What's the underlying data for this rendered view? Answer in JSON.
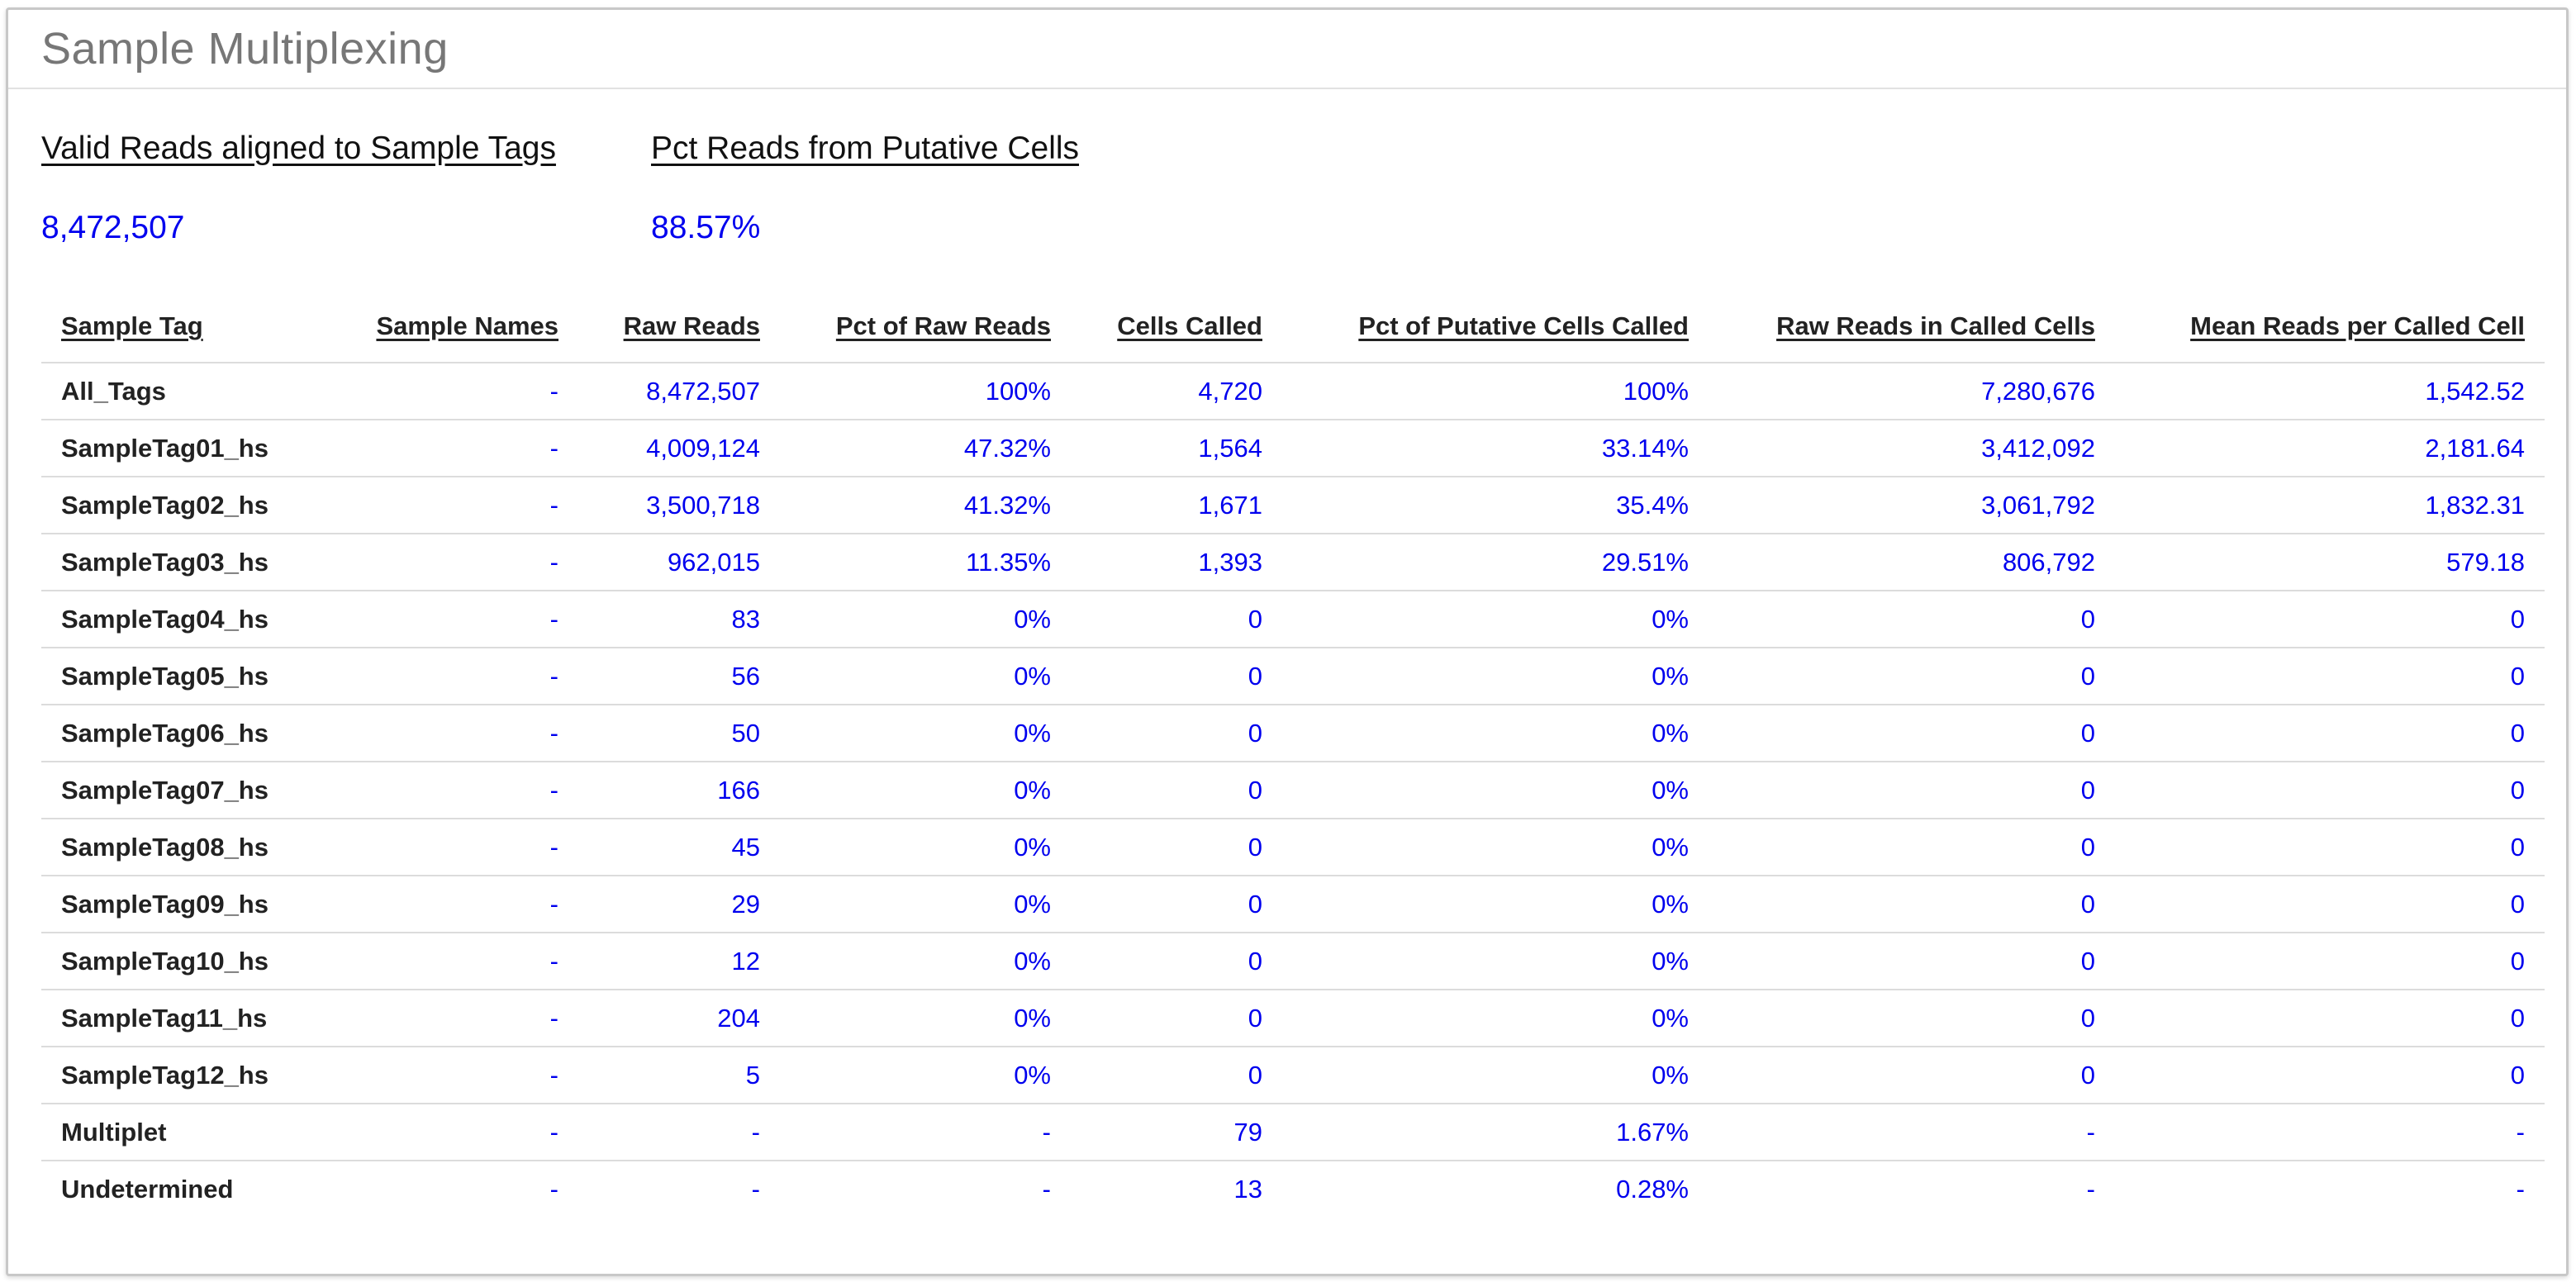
{
  "panel": {
    "title": "Sample Multiplexing"
  },
  "summary": {
    "valid_reads_label": "Valid Reads aligned to Sample Tags",
    "valid_reads_value": "8,472,507",
    "pct_putative_label": "Pct Reads from Putative Cells",
    "pct_putative_value": "88.57%"
  },
  "table": {
    "columns": [
      "Sample Tag",
      "Sample Names",
      "Raw Reads",
      "Pct of Raw Reads",
      "Cells Called",
      "Pct of Putative Cells Called",
      "Raw Reads in Called Cells",
      "Mean Reads per Called Cell"
    ],
    "rows": [
      [
        "All_Tags",
        "-",
        "8,472,507",
        "100%",
        "4,720",
        "100%",
        "7,280,676",
        "1,542.52"
      ],
      [
        "SampleTag01_hs",
        "-",
        "4,009,124",
        "47.32%",
        "1,564",
        "33.14%",
        "3,412,092",
        "2,181.64"
      ],
      [
        "SampleTag02_hs",
        "-",
        "3,500,718",
        "41.32%",
        "1,671",
        "35.4%",
        "3,061,792",
        "1,832.31"
      ],
      [
        "SampleTag03_hs",
        "-",
        "962,015",
        "11.35%",
        "1,393",
        "29.51%",
        "806,792",
        "579.18"
      ],
      [
        "SampleTag04_hs",
        "-",
        "83",
        "0%",
        "0",
        "0%",
        "0",
        "0"
      ],
      [
        "SampleTag05_hs",
        "-",
        "56",
        "0%",
        "0",
        "0%",
        "0",
        "0"
      ],
      [
        "SampleTag06_hs",
        "-",
        "50",
        "0%",
        "0",
        "0%",
        "0",
        "0"
      ],
      [
        "SampleTag07_hs",
        "-",
        "166",
        "0%",
        "0",
        "0%",
        "0",
        "0"
      ],
      [
        "SampleTag08_hs",
        "-",
        "45",
        "0%",
        "0",
        "0%",
        "0",
        "0"
      ],
      [
        "SampleTag09_hs",
        "-",
        "29",
        "0%",
        "0",
        "0%",
        "0",
        "0"
      ],
      [
        "SampleTag10_hs",
        "-",
        "12",
        "0%",
        "0",
        "0%",
        "0",
        "0"
      ],
      [
        "SampleTag11_hs",
        "-",
        "204",
        "0%",
        "0",
        "0%",
        "0",
        "0"
      ],
      [
        "SampleTag12_hs",
        "-",
        "5",
        "0%",
        "0",
        "0%",
        "0",
        "0"
      ],
      [
        "Multiplet",
        "-",
        "-",
        "-",
        "79",
        "1.67%",
        "-",
        "-"
      ],
      [
        "Undetermined",
        "-",
        "-",
        "-",
        "13",
        "0.28%",
        "-",
        "-"
      ]
    ]
  },
  "colors": {
    "value_blue": "#0000ee",
    "title_gray": "#777777"
  }
}
